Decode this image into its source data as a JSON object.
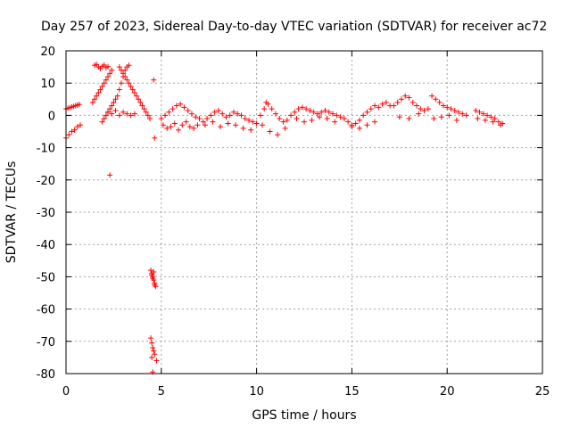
{
  "chart_data": {
    "type": "scatter",
    "title": "Day 257 of 2023, Sidereal Day-to-day VTEC variation (SDTVAR) for receiver ac72",
    "xlabel": "GPS time / hours",
    "ylabel": "SDTVAR / TECUs",
    "xlim": [
      0,
      25
    ],
    "ylim": [
      -80,
      20
    ],
    "xticks": [
      0,
      5,
      10,
      15,
      20,
      25
    ],
    "xtick_labels": [
      "0",
      "5",
      "10",
      "15",
      "20",
      "25"
    ],
    "yticks": [
      20,
      10,
      0,
      -10,
      -20,
      -30,
      -40,
      -50,
      -60,
      -70,
      -80
    ],
    "ytick_labels": [
      "20",
      "10",
      "0",
      "-10",
      "-20",
      "-30",
      "-40",
      "-50",
      "-60",
      "-70",
      "-80"
    ],
    "grid": true,
    "marker": "+",
    "color": "#ff0000",
    "series": [
      {
        "name": "SDTVAR",
        "x": [
          0.0,
          0.1,
          0.2,
          0.3,
          0.4,
          0.5,
          0.6,
          0.7,
          0.0,
          0.15,
          0.3,
          0.45,
          0.6,
          0.75,
          1.4,
          1.5,
          1.6,
          1.7,
          1.8,
          1.9,
          2.0,
          2.1,
          2.2,
          2.3,
          2.4,
          1.5,
          1.6,
          1.7,
          1.8,
          1.9,
          2.0,
          2.1,
          2.2,
          1.9,
          2.0,
          2.1,
          2.2,
          2.3,
          2.4,
          2.5,
          2.6,
          2.7,
          2.8,
          2.9,
          3.0,
          3.1,
          3.2,
          3.3,
          2.8,
          2.9,
          3.0,
          3.1,
          3.2,
          3.3,
          3.4,
          3.5,
          3.6,
          3.7,
          3.8,
          3.9,
          4.0,
          4.1,
          4.2,
          4.3,
          4.4,
          2.2,
          2.4,
          2.6,
          2.8,
          3.0,
          3.2,
          3.4,
          3.6,
          2.3,
          4.65,
          4.6,
          4.45,
          4.5,
          4.55,
          4.6,
          4.65,
          4.7,
          4.5,
          4.55,
          4.6,
          4.65,
          4.45,
          4.5,
          4.55,
          4.6,
          4.65,
          4.75,
          4.5,
          4.55,
          5.0,
          5.2,
          5.4,
          5.6,
          5.8,
          6.0,
          6.2,
          6.4,
          6.6,
          6.8,
          7.0,
          5.1,
          5.3,
          5.5,
          5.7,
          5.9,
          6.1,
          6.3,
          6.5,
          6.7,
          6.9,
          7.2,
          7.4,
          7.6,
          7.8,
          8.0,
          8.2,
          8.4,
          8.6,
          8.8,
          9.0,
          9.2,
          9.4,
          9.6,
          9.8,
          10.0,
          7.3,
          7.7,
          8.1,
          8.5,
          8.9,
          9.3,
          9.7,
          10.2,
          10.4,
          10.5,
          10.6,
          10.8,
          11.0,
          11.2,
          11.4,
          11.6,
          11.8,
          10.3,
          10.7,
          11.1,
          11.5,
          12.0,
          12.2,
          12.4,
          12.6,
          12.8,
          13.0,
          13.2,
          13.4,
          13.6,
          13.8,
          14.0,
          14.2,
          14.4,
          12.1,
          12.5,
          12.9,
          13.3,
          13.7,
          14.1,
          14.6,
          14.8,
          15.0,
          15.2,
          15.4,
          15.6,
          15.8,
          16.0,
          16.2,
          16.4,
          16.6,
          16.8,
          17.0,
          15.0,
          15.4,
          15.8,
          16.2,
          17.2,
          17.4,
          17.6,
          17.8,
          18.0,
          18.2,
          18.4,
          18.6,
          18.8,
          19.0,
          17.5,
          18.0,
          18.5,
          19.2,
          19.4,
          19.6,
          19.8,
          20.0,
          20.2,
          20.4,
          20.6,
          20.8,
          21.0,
          19.3,
          19.7,
          20.1,
          20.5,
          21.5,
          21.7,
          21.9,
          22.1,
          22.3,
          22.5,
          22.7,
          22.9,
          21.6,
          22.0,
          22.4,
          22.8
        ],
        "y": [
          2.0,
          2.2,
          2.4,
          2.6,
          2.8,
          3.0,
          3.2,
          3.4,
          -7.0,
          -6.0,
          -5.0,
          -4.5,
          -3.5,
          -3.0,
          4.0,
          5.0,
          6.0,
          7.0,
          8.0,
          9.0,
          10.0,
          11.0,
          12.0,
          13.0,
          14.0,
          15.5,
          15.8,
          15.0,
          14.5,
          15.2,
          15.6,
          14.8,
          15.1,
          -2.0,
          -1.0,
          0.0,
          1.0,
          2.0,
          3.0,
          4.0,
          5.0,
          6.0,
          8.0,
          10.0,
          12.0,
          14.0,
          15.0,
          15.5,
          15.0,
          14.0,
          13.0,
          12.0,
          11.0,
          10.0,
          9.0,
          8.0,
          7.0,
          6.0,
          5.0,
          4.0,
          3.0,
          2.0,
          1.0,
          0.0,
          -1.0,
          1.0,
          0.5,
          1.5,
          0.0,
          1.0,
          0.5,
          0.0,
          0.5,
          -18.5,
          -7.0,
          11.0,
          -48.0,
          -49.0,
          -50.0,
          -51.0,
          -52.0,
          -53.0,
          -49.5,
          -50.5,
          -48.5,
          -52.5,
          -69.0,
          -70.5,
          -72.0,
          -73.0,
          -74.0,
          -76.0,
          -75.0,
          -79.5,
          -1.0,
          0.0,
          1.0,
          2.0,
          3.0,
          3.5,
          2.5,
          1.5,
          0.5,
          -0.5,
          -1.0,
          -3.0,
          -4.0,
          -3.5,
          -2.5,
          -4.5,
          -3.0,
          -2.0,
          -3.5,
          -4.0,
          -3.0,
          -2.0,
          -1.0,
          0.0,
          1.0,
          1.5,
          0.5,
          -0.5,
          0.0,
          1.0,
          0.5,
          0.0,
          -1.0,
          -1.5,
          -2.0,
          -2.5,
          -3.0,
          -2.0,
          -3.5,
          -2.5,
          -3.0,
          -4.0,
          -4.5,
          0.0,
          2.0,
          4.0,
          3.5,
          2.0,
          0.5,
          -1.0,
          -2.0,
          -1.5,
          0.0,
          -3.0,
          -5.0,
          -6.0,
          -4.0,
          1.0,
          2.0,
          2.5,
          2.0,
          1.5,
          1.0,
          0.5,
          1.0,
          1.5,
          1.0,
          0.5,
          0.0,
          -0.5,
          -1.0,
          -2.0,
          -1.5,
          -0.5,
          -1.0,
          -2.0,
          -1.0,
          -2.0,
          -3.0,
          -2.5,
          -1.5,
          0.0,
          1.0,
          2.0,
          3.0,
          2.5,
          3.5,
          4.0,
          3.0,
          -3.5,
          -4.0,
          -3.0,
          -2.0,
          3.0,
          4.0,
          5.0,
          6.0,
          5.5,
          4.0,
          3.0,
          2.0,
          1.5,
          2.0,
          -0.5,
          -1.0,
          0.5,
          6.0,
          5.0,
          4.0,
          3.0,
          2.5,
          2.0,
          1.5,
          1.0,
          0.5,
          0.0,
          -1.0,
          -0.5,
          0.0,
          -1.5,
          1.5,
          1.0,
          0.5,
          0.0,
          -0.5,
          -1.0,
          -2.0,
          -2.5,
          -1.0,
          -1.5,
          -2.0,
          -3.0
        ]
      }
    ]
  }
}
